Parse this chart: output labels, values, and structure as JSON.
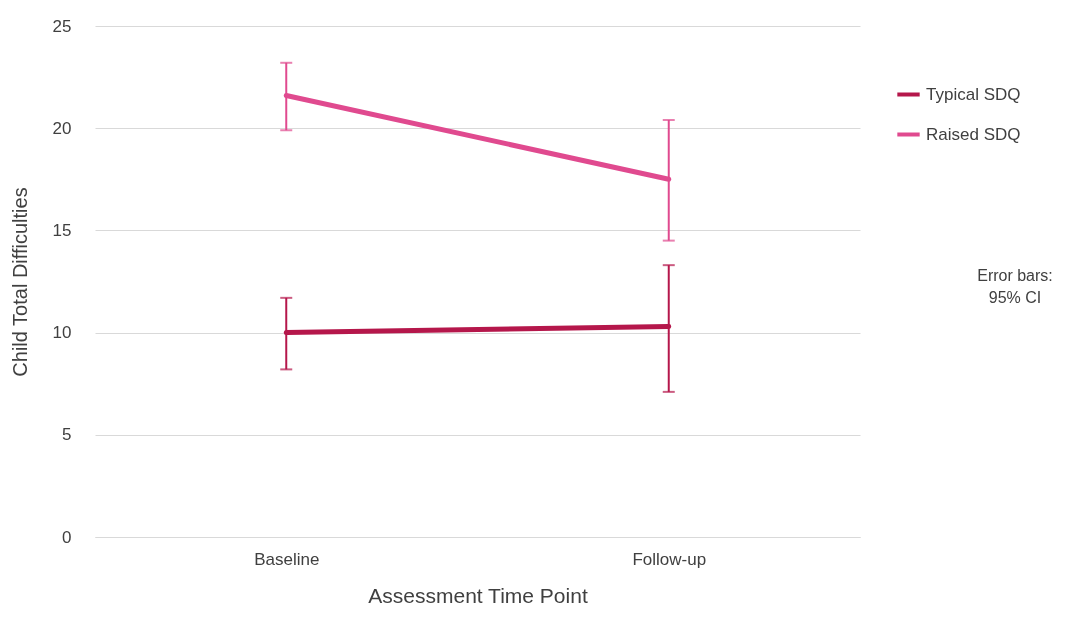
{
  "chart_data": {
    "type": "line",
    "xlabel": "Assessment Time Point",
    "ylabel": "Child Total Difficulties",
    "categories": [
      "Baseline",
      "Follow-up"
    ],
    "series": [
      {
        "name": "Typical SDQ",
        "color": "#b5174b",
        "values": [
          10.0,
          10.3
        ],
        "errors": [
          [
            8.2,
            11.7
          ],
          [
            7.1,
            13.3
          ]
        ]
      },
      {
        "name": "Raised SDQ",
        "color": "#e04a8f",
        "values": [
          21.6,
          17.5
        ],
        "errors": [
          [
            19.9,
            23.2
          ],
          [
            14.5,
            20.4
          ]
        ]
      }
    ],
    "ylim": [
      0,
      25
    ],
    "yticks": [
      0,
      5,
      10,
      15,
      20,
      25
    ],
    "grid": "y",
    "legend": "right",
    "marker": "none",
    "line_style": "solid",
    "annotations": [
      "Error bars:\n95% CI"
    ]
  }
}
